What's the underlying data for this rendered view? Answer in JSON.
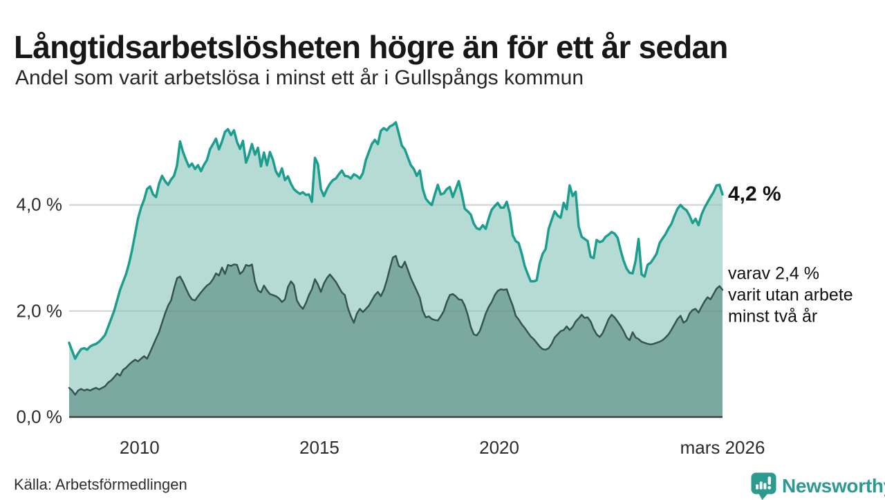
{
  "footer": {
    "source": "Källa: Arbetsförmedlingen",
    "brand": "Newsworthy",
    "brand_color": "#2d9a92"
  },
  "chart_data": {
    "type": "area",
    "title": "Långtidsarbetslösheten högre än för ett år sedan",
    "subtitle": "Andel som varit arbetslösa i minst ett år i Gullspångs kommun",
    "unit": "%",
    "x_start": "2008-01",
    "x_end": "2026-03",
    "x_domain": [
      2008.042,
      2026.208
    ],
    "x_ticks": [
      {
        "label": "2010",
        "t": 2010
      },
      {
        "label": "2015",
        "t": 2015
      },
      {
        "label": "2020",
        "t": 2020
      },
      {
        "label": "mars 2026",
        "t": 2026.208
      }
    ],
    "y_ticks": [
      {
        "label": "0,0 %",
        "v": 0
      },
      {
        "label": "2,0 %",
        "v": 2
      },
      {
        "label": "4,0 %",
        "v": 4
      }
    ],
    "gridlines": [
      2,
      4
    ],
    "ylim": [
      0,
      5.78
    ],
    "legend_position": "none",
    "colors": {
      "grid": "#e3e3e8",
      "grid_overlay": "rgba(70,90,90,0.14)",
      "baseline": "#3e3e3e"
    },
    "annotations": [
      {
        "text": "4,2 %",
        "v": 4.2
      },
      {
        "lines": [
          "varav 2,4 %",
          "varit utan arbete",
          "minst två år"
        ],
        "v": 2.4
      }
    ],
    "series": [
      {
        "name": "arbetslösa minst ett år",
        "line_color": "#1b9e8e",
        "fill_color": "#b6dbd5",
        "line_width": 3.5,
        "latest_value": 4.2,
        "values": [
          1.4,
          1.25,
          1.1,
          1.2,
          1.28,
          1.3,
          1.27,
          1.33,
          1.36,
          1.38,
          1.42,
          1.48,
          1.55,
          1.7,
          1.85,
          2.0,
          2.2,
          2.4,
          2.55,
          2.7,
          2.9,
          3.15,
          3.45,
          3.75,
          3.95,
          4.1,
          4.3,
          4.35,
          4.2,
          4.15,
          4.4,
          4.55,
          4.45,
          4.38,
          4.48,
          4.55,
          4.75,
          5.2,
          5.0,
          4.85,
          4.72,
          4.78,
          4.68,
          4.75,
          4.64,
          4.76,
          4.85,
          5.05,
          5.15,
          5.25,
          5.05,
          5.2,
          5.38,
          5.43,
          5.32,
          5.41,
          5.19,
          5.06,
          5.21,
          4.8,
          4.95,
          5.15,
          4.95,
          5.08,
          4.73,
          4.99,
          4.75,
          5.0,
          4.85,
          4.63,
          4.54,
          4.69,
          4.47,
          4.54,
          4.4,
          4.3,
          4.25,
          4.21,
          4.24,
          4.19,
          4.2,
          4.06,
          4.89,
          4.77,
          4.3,
          4.17,
          4.3,
          4.4,
          4.47,
          4.5,
          4.58,
          4.65,
          4.55,
          4.54,
          4.5,
          4.58,
          4.55,
          4.5,
          4.6,
          4.85,
          5.0,
          5.15,
          5.23,
          5.15,
          5.4,
          5.45,
          5.41,
          5.48,
          5.51,
          5.56,
          5.35,
          5.12,
          5.05,
          4.9,
          4.75,
          4.68,
          4.55,
          4.65,
          4.3,
          4.12,
          4.05,
          4.0,
          4.2,
          4.38,
          4.2,
          4.22,
          4.3,
          4.34,
          4.15,
          4.3,
          4.45,
          4.21,
          3.93,
          3.88,
          3.82,
          3.65,
          3.56,
          3.54,
          3.62,
          3.55,
          3.75,
          3.91,
          3.98,
          4.04,
          3.95,
          3.95,
          4.06,
          3.85,
          3.43,
          3.32,
          3.28,
          3.08,
          2.85,
          2.7,
          2.56,
          2.56,
          2.58,
          2.9,
          3.08,
          3.17,
          3.55,
          3.72,
          3.88,
          3.8,
          3.76,
          4.04,
          3.92,
          4.37,
          4.17,
          4.25,
          3.6,
          3.4,
          3.36,
          3.32,
          3.02,
          3.0,
          3.34,
          3.3,
          3.32,
          3.4,
          3.44,
          3.49,
          3.46,
          3.38,
          3.15,
          2.95,
          2.8,
          2.72,
          2.71,
          2.95,
          3.36,
          2.69,
          2.65,
          2.87,
          2.91,
          2.99,
          3.08,
          3.28,
          3.37,
          3.45,
          3.56,
          3.65,
          3.8,
          3.93,
          4.0,
          3.94,
          3.9,
          3.8,
          3.66,
          3.74,
          3.62,
          3.82,
          3.95,
          4.05,
          4.15,
          4.24,
          4.37,
          4.38,
          4.2
        ]
      },
      {
        "name": "arbetslösa minst två år",
        "line_color": "#37534e",
        "fill_color": "#7ba8a0",
        "line_width": 2.5,
        "latest_value": 2.4,
        "values": [
          0.55,
          0.5,
          0.42,
          0.5,
          0.53,
          0.5,
          0.52,
          0.5,
          0.53,
          0.55,
          0.52,
          0.55,
          0.58,
          0.65,
          0.69,
          0.75,
          0.82,
          0.78,
          0.89,
          0.93,
          0.99,
          1.04,
          1.08,
          1.05,
          1.1,
          1.15,
          1.1,
          1.22,
          1.35,
          1.48,
          1.6,
          1.78,
          1.95,
          2.1,
          2.2,
          2.42,
          2.62,
          2.65,
          2.55,
          2.42,
          2.3,
          2.22,
          2.2,
          2.28,
          2.35,
          2.42,
          2.48,
          2.52,
          2.6,
          2.71,
          2.67,
          2.82,
          2.7,
          2.87,
          2.85,
          2.88,
          2.87,
          2.7,
          2.75,
          2.87,
          2.85,
          2.88,
          2.55,
          2.39,
          2.35,
          2.48,
          2.39,
          2.32,
          2.3,
          2.28,
          2.24,
          2.17,
          2.22,
          2.45,
          2.56,
          2.49,
          2.2,
          2.1,
          2.04,
          2.15,
          2.3,
          2.41,
          2.6,
          2.5,
          2.36,
          2.52,
          2.62,
          2.69,
          2.62,
          2.55,
          2.45,
          2.35,
          2.3,
          2.06,
          1.9,
          1.78,
          1.95,
          2.04,
          1.98,
          2.04,
          2.1,
          2.2,
          2.3,
          2.36,
          2.28,
          2.4,
          2.58,
          2.8,
          3.01,
          3.04,
          2.85,
          2.82,
          2.93,
          2.78,
          2.62,
          2.5,
          2.38,
          2.25,
          2.0,
          1.88,
          1.9,
          1.85,
          1.83,
          1.82,
          1.9,
          2.0,
          2.17,
          2.3,
          2.32,
          2.28,
          2.22,
          2.21,
          2.1,
          1.93,
          1.7,
          1.56,
          1.54,
          1.62,
          1.78,
          1.95,
          2.08,
          2.17,
          2.3,
          2.38,
          2.41,
          2.4,
          2.41,
          2.25,
          2.1,
          1.91,
          1.84,
          1.75,
          1.68,
          1.6,
          1.52,
          1.47,
          1.4,
          1.33,
          1.28,
          1.27,
          1.3,
          1.38,
          1.5,
          1.56,
          1.62,
          1.64,
          1.71,
          1.64,
          1.7,
          1.8,
          1.86,
          1.93,
          1.87,
          1.88,
          1.8,
          1.66,
          1.56,
          1.51,
          1.58,
          1.71,
          1.85,
          1.93,
          1.88,
          1.8,
          1.72,
          1.62,
          1.5,
          1.45,
          1.6,
          1.5,
          1.47,
          1.42,
          1.4,
          1.38,
          1.37,
          1.38,
          1.4,
          1.42,
          1.45,
          1.5,
          1.56,
          1.65,
          1.75,
          1.85,
          1.91,
          1.78,
          1.82,
          1.95,
          2.02,
          2.04,
          1.97,
          2.08,
          2.18,
          2.26,
          2.22,
          2.32,
          2.42,
          2.47,
          2.4
        ]
      }
    ]
  }
}
